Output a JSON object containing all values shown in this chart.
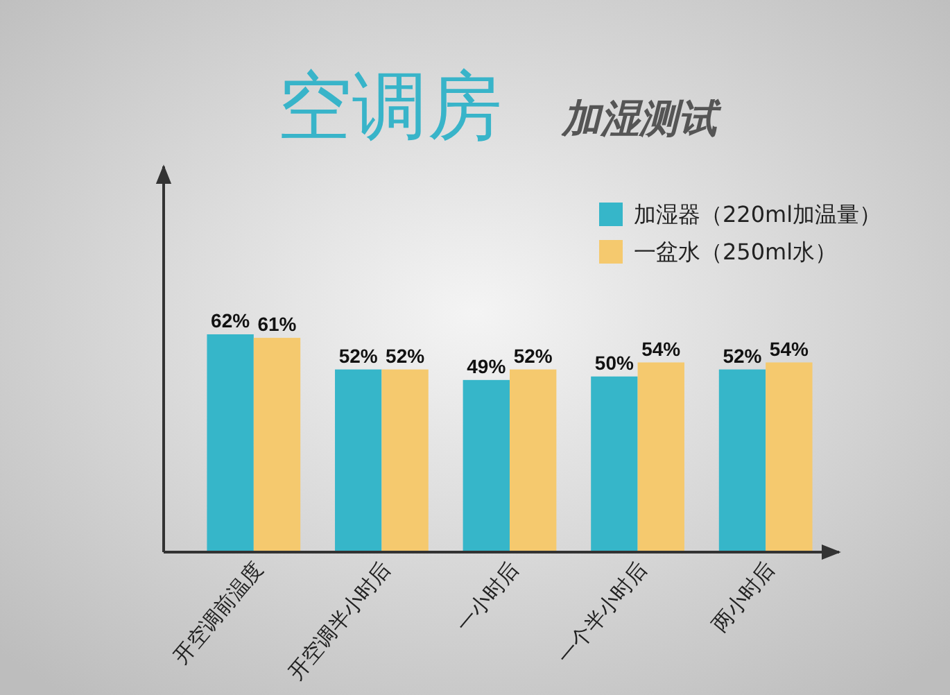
{
  "chart_data": {
    "type": "bar",
    "title": "空调房",
    "subtitle": "加湿测试",
    "categories": [
      "开空调前温度",
      "开空调半小时后",
      "一小时后",
      "一个半小时后",
      "两小时后"
    ],
    "series": [
      {
        "name": "加湿器（220ml加温量）",
        "color": "#36b6c9",
        "values": [
          62,
          52,
          49,
          50,
          52
        ],
        "value_labels": [
          "62%",
          "52%",
          "49%",
          "50%",
          "52%"
        ]
      },
      {
        "name": "一盆水（250ml水）",
        "color": "#f5c96e",
        "values": [
          61,
          52,
          52,
          54,
          54
        ],
        "value_labels": [
          "61%",
          "52%",
          "52%",
          "54%",
          "54%"
        ]
      }
    ],
    "legend": "top right",
    "tick_labels": "x"
  }
}
